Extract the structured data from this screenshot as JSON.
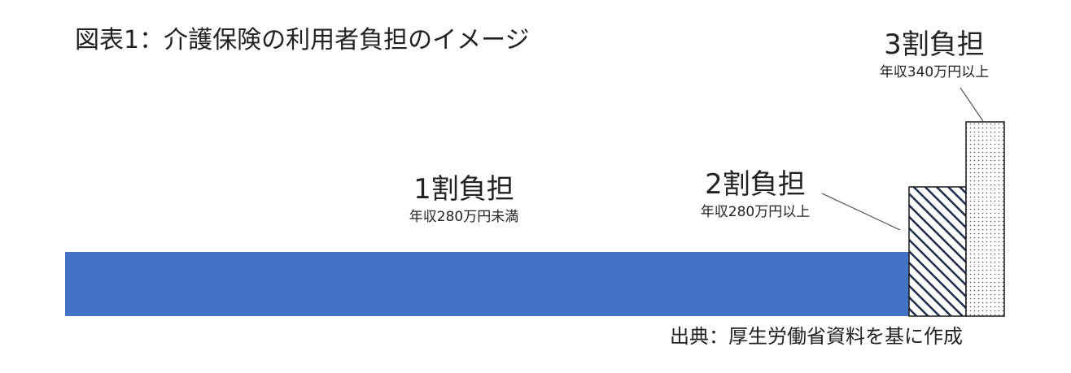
{
  "title": "図表1：介護保険の利用者負担のイメージ",
  "tiers": [
    {
      "label": "1割負担",
      "condition": "年収280万円未満"
    },
    {
      "label": "2割負担",
      "condition": "年収280万円以上"
    },
    {
      "label": "3割負担",
      "condition": "年収340万円以上"
    }
  ],
  "source": "出典：厚生労働省資料を基に作成",
  "colors": {
    "tier1_fill": "#4472c4",
    "tier2_stroke": "#1f2d4d",
    "tier3_dots": "#555555",
    "outline": "#1a1a1a",
    "leader": "#555555"
  }
}
